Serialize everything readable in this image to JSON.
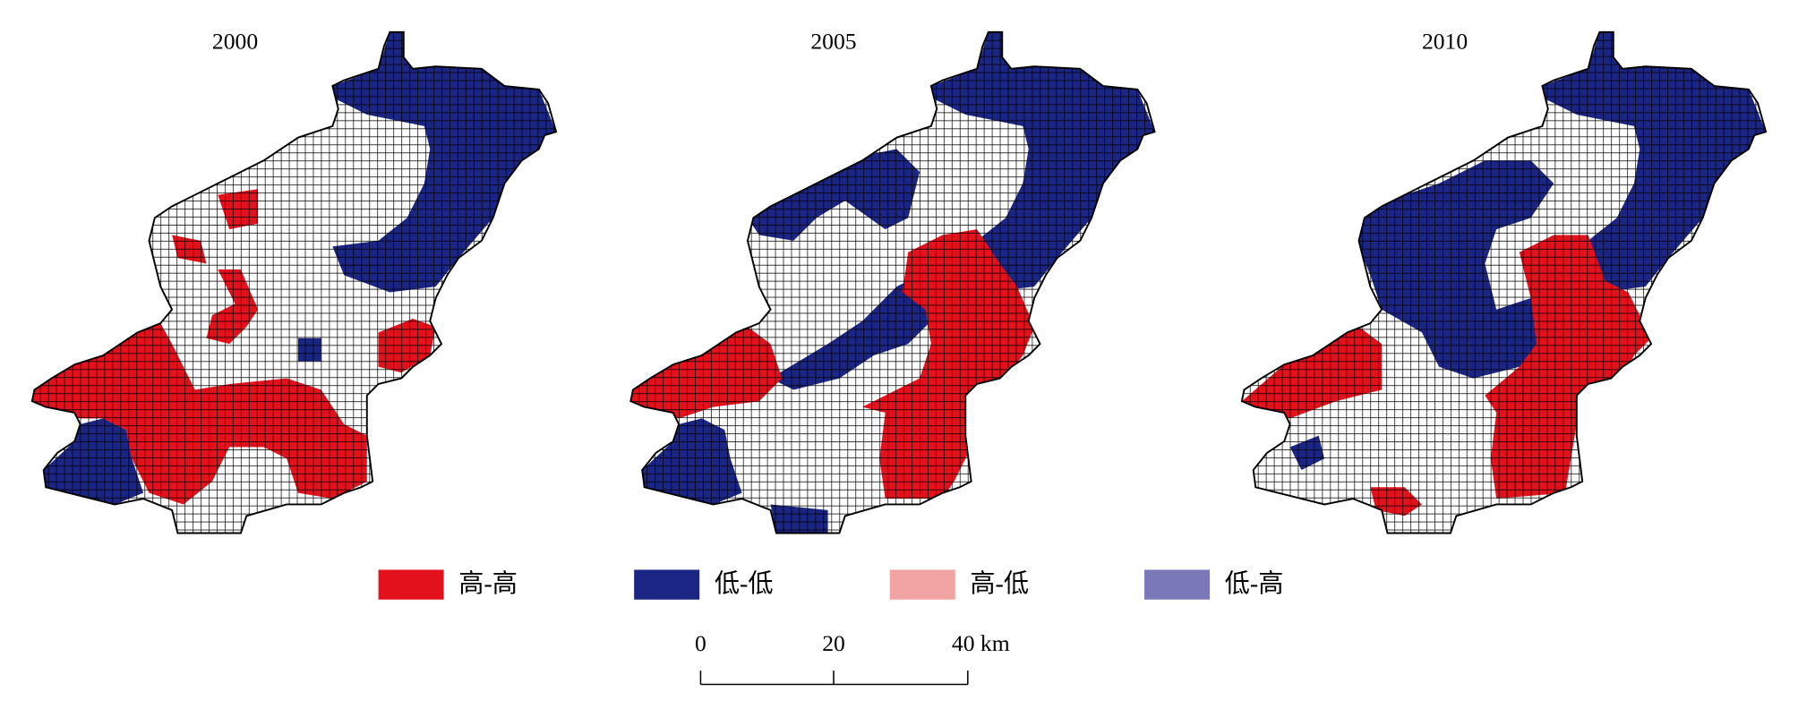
{
  "panels": [
    {
      "title": "2000"
    },
    {
      "title": "2005"
    },
    {
      "title": "2010"
    }
  ],
  "legend": [
    {
      "label": "高-高",
      "color": "#e3111b"
    },
    {
      "label": "低-低",
      "color": "#1b2583"
    },
    {
      "label": "高-低",
      "color": "#f2a3a3"
    },
    {
      "label": "低-高",
      "color": "#7b78b9"
    }
  ],
  "scale_bar": {
    "labels": [
      "0",
      "20",
      "40 km"
    ]
  }
}
